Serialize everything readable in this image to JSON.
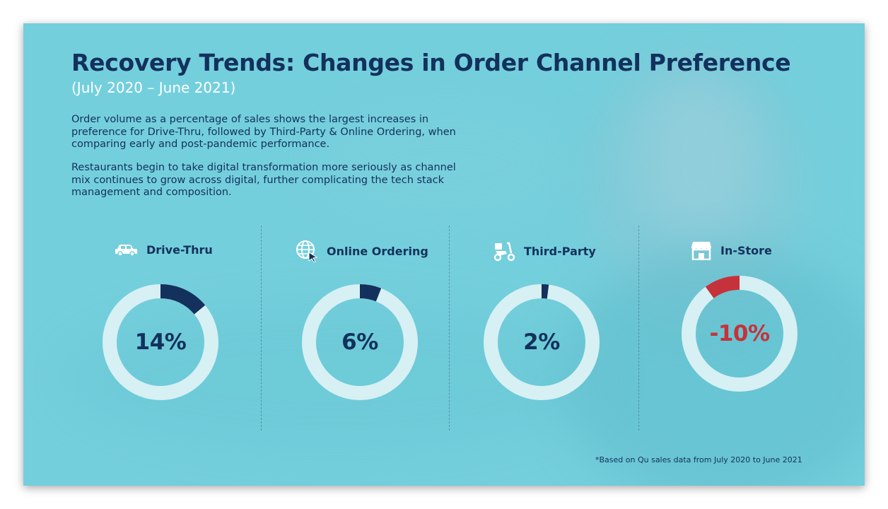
{
  "title": "Recovery Trends: Changes in Order Channel Preference",
  "subtitle": "(July 2020 – June 2021)",
  "paragraph_1": "Order volume as a percentage of sales shows the largest increases in preference for Drive-Thru, followed by Third-Party & Online Ordering, when comparing early and post-pandemic performance.",
  "paragraph_2": "Restaurants begin to take digital transformation more seriously as channel mix continues to grow across digital, further complicating the tech stack management and composition.",
  "footnote": "*Based on Qu sales data from July 2020 to June 2021",
  "colors": {
    "background": "#74cfdc",
    "positive": "#13315c",
    "negative": "#c5323b",
    "ring_track": "#d6f0f4"
  },
  "chart_data": {
    "type": "donut",
    "unit": "%",
    "categories": [
      "Drive-Thru",
      "Online Ordering",
      "Third-Party",
      "In-Store"
    ],
    "values": [
      14,
      6,
      2,
      -10
    ],
    "labels": [
      "14%",
      "6%",
      "2%",
      "-10%"
    ],
    "icons": [
      "car-icon",
      "globe-cursor-icon",
      "scooter-icon",
      "storefront-icon"
    ]
  }
}
